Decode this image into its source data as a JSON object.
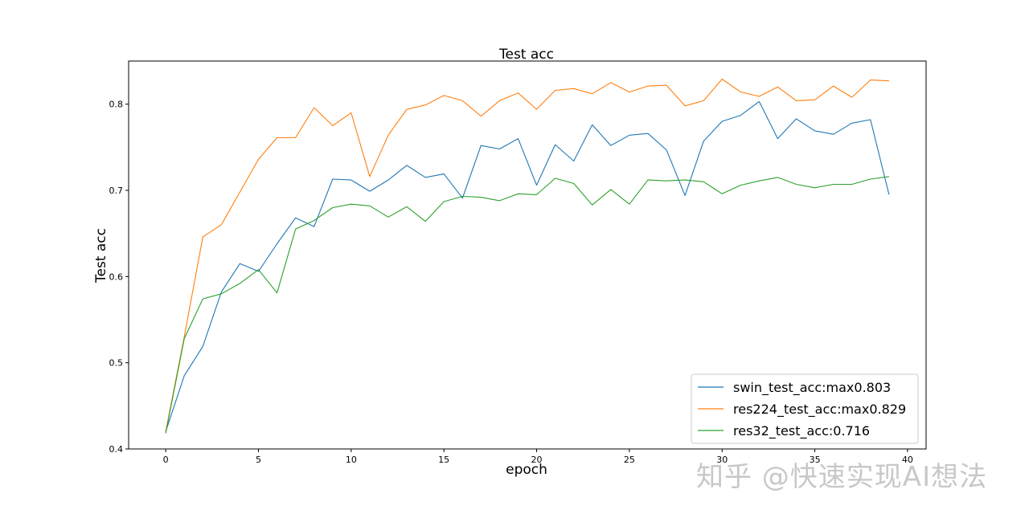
{
  "watermark": "知乎 @快速实现AI想法",
  "chart_data": {
    "type": "line",
    "title": "Test acc",
    "xlabel": "epoch",
    "ylabel": "Test acc",
    "xlim": [
      -2,
      41
    ],
    "ylim": [
      0.4,
      0.85
    ],
    "xticks": [
      0,
      5,
      10,
      15,
      20,
      25,
      30,
      35,
      40
    ],
    "yticks": [
      0.4,
      0.5,
      0.6,
      0.7,
      0.8
    ],
    "grid": false,
    "legend_position": "lower-right",
    "x": [
      0,
      1,
      2,
      3,
      4,
      5,
      6,
      7,
      8,
      9,
      10,
      11,
      12,
      13,
      14,
      15,
      16,
      17,
      18,
      19,
      20,
      21,
      22,
      23,
      24,
      25,
      26,
      27,
      28,
      29,
      30,
      31,
      32,
      33,
      34,
      35,
      36,
      37,
      38,
      39
    ],
    "series": [
      {
        "name": "swin_test_acc:max0.803",
        "color": "#1f77b4",
        "values": [
          0.42,
          0.485,
          0.519,
          0.582,
          0.615,
          0.606,
          0.638,
          0.668,
          0.658,
          0.713,
          0.712,
          0.699,
          0.712,
          0.729,
          0.715,
          0.719,
          0.691,
          0.752,
          0.748,
          0.76,
          0.706,
          0.753,
          0.734,
          0.776,
          0.752,
          0.764,
          0.766,
          0.747,
          0.694,
          0.757,
          0.78,
          0.787,
          0.803,
          0.76,
          0.783,
          0.769,
          0.765,
          0.778,
          0.782,
          0.695
        ]
      },
      {
        "name": "res224_test_acc:max0.829",
        "color": "#ff7f0e",
        "values": [
          0.42,
          0.53,
          0.646,
          0.66,
          0.698,
          0.736,
          0.761,
          0.761,
          0.796,
          0.775,
          0.79,
          0.716,
          0.764,
          0.794,
          0.799,
          0.81,
          0.804,
          0.786,
          0.804,
          0.813,
          0.794,
          0.816,
          0.818,
          0.812,
          0.825,
          0.814,
          0.821,
          0.822,
          0.798,
          0.804,
          0.829,
          0.814,
          0.809,
          0.82,
          0.804,
          0.805,
          0.821,
          0.808,
          0.828,
          0.827
        ]
      },
      {
        "name": "res32_test_acc:0.716",
        "color": "#2ca02c",
        "values": [
          0.418,
          0.528,
          0.574,
          0.58,
          0.592,
          0.608,
          0.581,
          0.655,
          0.665,
          0.68,
          0.684,
          0.682,
          0.669,
          0.681,
          0.664,
          0.687,
          0.693,
          0.692,
          0.688,
          0.696,
          0.695,
          0.714,
          0.708,
          0.683,
          0.701,
          0.684,
          0.712,
          0.711,
          0.712,
          0.71,
          0.696,
          0.706,
          0.711,
          0.715,
          0.707,
          0.703,
          0.707,
          0.707,
          0.713,
          0.716
        ]
      }
    ]
  }
}
